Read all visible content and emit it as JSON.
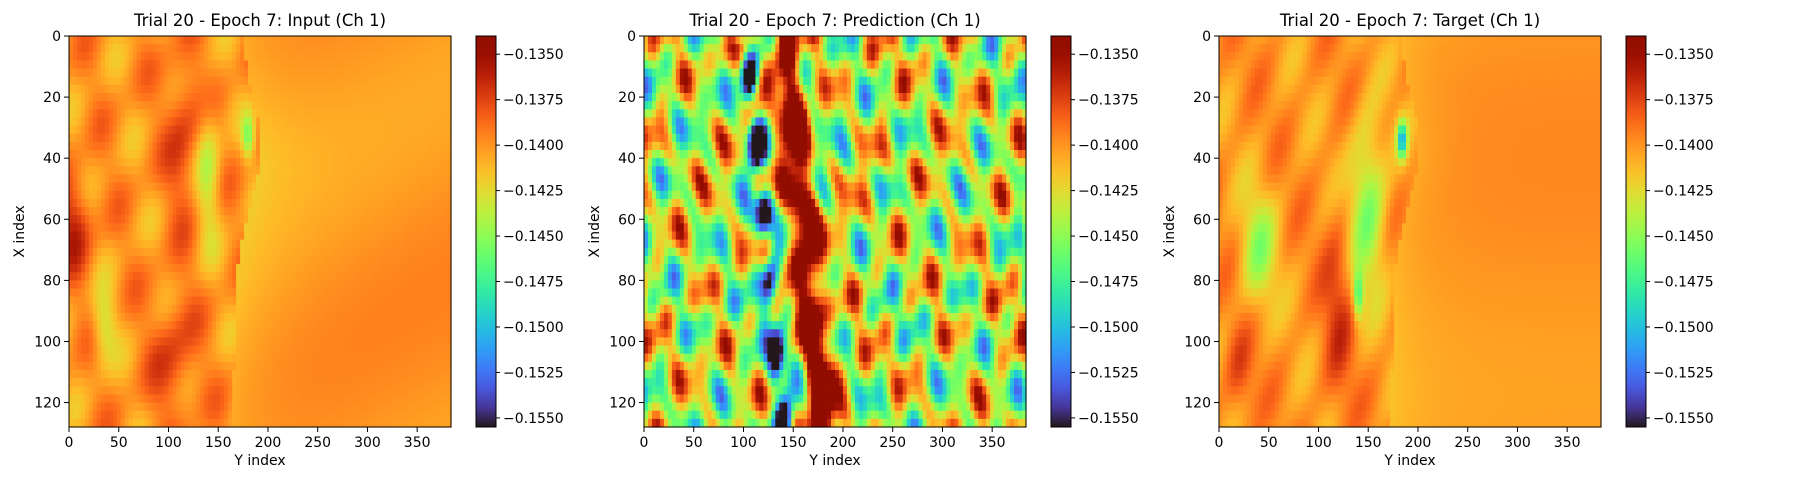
{
  "colors": {
    "colormap": "turbo",
    "frame": "#000000",
    "background": "#ffffff"
  },
  "chart_data": [
    {
      "type": "heatmap",
      "title": "Trial 20 - Epoch 7: Input (Ch 1)",
      "xlabel": "Y index",
      "ylabel": "X index",
      "x_range": [
        0,
        384
      ],
      "y_range": [
        0,
        128
      ],
      "y_inverted": true,
      "x_ticks": [
        0,
        50,
        100,
        150,
        200,
        250,
        300,
        350
      ],
      "y_ticks": [
        0,
        20,
        40,
        60,
        80,
        100,
        120
      ],
      "colorbar": {
        "range": [
          -0.1555,
          -0.134
        ],
        "ticks": [
          "−0.1350",
          "−0.1375",
          "−0.1400",
          "−0.1425",
          "−0.1450",
          "−0.1475",
          "−0.1500",
          "−0.1525",
          "−0.1550"
        ],
        "tick_values": [
          -0.135,
          -0.1375,
          -0.14,
          -0.1425,
          -0.145,
          -0.1475,
          -0.15,
          -0.1525,
          -0.155
        ]
      },
      "field": "input"
    },
    {
      "type": "heatmap",
      "title": "Trial 20 - Epoch 7: Prediction (Ch 1)",
      "xlabel": "Y index",
      "ylabel": "X index",
      "x_range": [
        0,
        384
      ],
      "y_range": [
        0,
        128
      ],
      "y_inverted": true,
      "x_ticks": [
        0,
        50,
        100,
        150,
        200,
        250,
        300,
        350
      ],
      "y_ticks": [
        0,
        20,
        40,
        60,
        80,
        100,
        120
      ],
      "colorbar": {
        "range": [
          -0.1555,
          -0.134
        ],
        "ticks": [
          "−0.1350",
          "−0.1375",
          "−0.1400",
          "−0.1425",
          "−0.1450",
          "−0.1475",
          "−0.1500",
          "−0.1525",
          "−0.1550"
        ],
        "tick_values": [
          -0.135,
          -0.1375,
          -0.14,
          -0.1425,
          -0.145,
          -0.1475,
          -0.15,
          -0.1525,
          -0.155
        ]
      },
      "field": "prediction"
    },
    {
      "type": "heatmap",
      "title": "Trial 20 - Epoch 7: Target (Ch 1)",
      "xlabel": "Y index",
      "ylabel": "X index",
      "x_range": [
        0,
        384
      ],
      "y_range": [
        0,
        128
      ],
      "y_inverted": true,
      "x_ticks": [
        0,
        50,
        100,
        150,
        200,
        250,
        300,
        350
      ],
      "y_ticks": [
        0,
        20,
        40,
        60,
        80,
        100,
        120
      ],
      "colorbar": {
        "range": [
          -0.1555,
          -0.134
        ],
        "ticks": [
          "−0.1350",
          "−0.1375",
          "−0.1400",
          "−0.1425",
          "−0.1450",
          "−0.1475",
          "−0.1500",
          "−0.1525",
          "−0.1550"
        ],
        "tick_values": [
          -0.135,
          -0.1375,
          -0.14,
          -0.1425,
          -0.145,
          -0.1475,
          -0.15,
          -0.1525,
          -0.155
        ]
      },
      "field": "target"
    }
  ]
}
